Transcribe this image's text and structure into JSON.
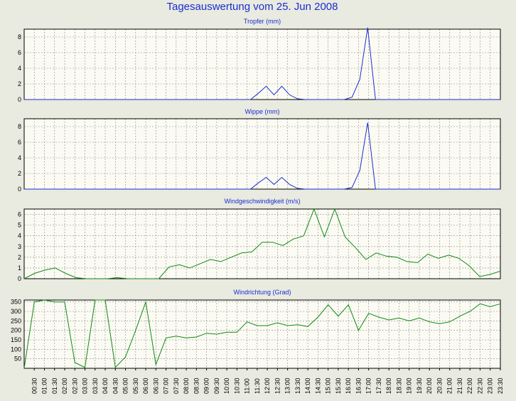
{
  "title": "Tagesauswertung vom 25. Jun 2008",
  "colors": {
    "background": "#e9eae0",
    "plot_background": "#fbfbf4",
    "title": "#1a2ed0",
    "rain_series": "#1a2ed0",
    "wind_series": "#0f8a0f",
    "grid": "#8a8a8a"
  },
  "chart_data": [
    {
      "type": "line",
      "title": "Tropfer (mm)",
      "ylim": [
        0,
        9
      ],
      "yticks": [
        0,
        2,
        4,
        6,
        8
      ],
      "grid": true,
      "series": [
        {
          "color": "#1a2ed0",
          "values": [
            0,
            0,
            0,
            0,
            0,
            0,
            0,
            0,
            0,
            0,
            0,
            0,
            0,
            0,
            0,
            0,
            0,
            0,
            0,
            0,
            0,
            0,
            0,
            0,
            0,
            0,
            0,
            0,
            0,
            0,
            0.8,
            1.7,
            0.6,
            1.7,
            0.6,
            0.1,
            0,
            0,
            0,
            0,
            0,
            0,
            0.3,
            2.6,
            9.2,
            0,
            0,
            0,
            0,
            0,
            0,
            0,
            0,
            0,
            0,
            0,
            0,
            0,
            0,
            0,
            0,
            0
          ]
        }
      ]
    },
    {
      "type": "line",
      "title": "Wippe (mm)",
      "ylim": [
        0,
        9
      ],
      "yticks": [
        0,
        2,
        4,
        6,
        8
      ],
      "grid": true,
      "series": [
        {
          "color": "#1a2ed0",
          "values": [
            0,
            0,
            0,
            0,
            0,
            0,
            0,
            0,
            0,
            0,
            0,
            0,
            0,
            0,
            0,
            0,
            0,
            0,
            0,
            0,
            0,
            0,
            0,
            0,
            0,
            0,
            0,
            0,
            0,
            0,
            0.8,
            1.5,
            0.6,
            1.5,
            0.6,
            0.1,
            0,
            0,
            0,
            0,
            0,
            0,
            0.2,
            2.4,
            8.5,
            0,
            0,
            0,
            0,
            0,
            0,
            0,
            0,
            0,
            0,
            0,
            0,
            0,
            0,
            0,
            0,
            0
          ]
        }
      ]
    },
    {
      "type": "line",
      "title": "Windgeschwindigkeit (m/s)",
      "ylim": [
        0,
        6.5
      ],
      "yticks": [
        0,
        1,
        2,
        3,
        4,
        5,
        6
      ],
      "grid": true,
      "series": [
        {
          "color": "#0f8a0f",
          "values": [
            0,
            0.5,
            0.8,
            1,
            0.5,
            0.1,
            0,
            0,
            0,
            0.1,
            0,
            0,
            0,
            0,
            1.1,
            1.3,
            1,
            1.4,
            1.8,
            1.6,
            2,
            2.4,
            2.5,
            3.4,
            3.4,
            3.1,
            3.7,
            4,
            6.5,
            3.9,
            6.5,
            3.9,
            2.9,
            1.8,
            2.4,
            2.1,
            2,
            1.6,
            1.5,
            2.3,
            1.9,
            2.2,
            1.9,
            1.2,
            0.2,
            0.4,
            0.7
          ]
        }
      ]
    },
    {
      "type": "line",
      "title": "Windrichtung (Grad)",
      "ylim": [
        0,
        360
      ],
      "yticks": [
        50,
        100,
        150,
        200,
        250,
        300,
        350
      ],
      "grid": true,
      "series": [
        {
          "color": "#0f8a0f",
          "values": [
            0,
            350,
            360,
            350,
            350,
            30,
            5,
            360,
            360,
            5,
            60,
            200,
            350,
            20,
            160,
            170,
            160,
            165,
            185,
            180,
            190,
            190,
            245,
            225,
            225,
            240,
            225,
            230,
            220,
            270,
            335,
            275,
            335,
            200,
            290,
            270,
            255,
            265,
            250,
            265,
            245,
            235,
            245,
            275,
            300,
            340,
            325,
            340
          ]
        }
      ]
    }
  ],
  "x_ticks": [
    "00:30",
    "01:00",
    "01:30",
    "02:00",
    "02:30",
    "03:00",
    "03:30",
    "04:00",
    "04:30",
    "05:00",
    "05:30",
    "06:00",
    "06:30",
    "07:00",
    "07:30",
    "08:00",
    "08:30",
    "09:00",
    "09:30",
    "10:00",
    "10:30",
    "11:00",
    "11:30",
    "12:00",
    "12:30",
    "13:00",
    "13:30",
    "14:00",
    "14:30",
    "15:00",
    "15:30",
    "16:00",
    "16:30",
    "17:00",
    "17:30",
    "18:00",
    "18:30",
    "19:00",
    "19:30",
    "20:00",
    "20:30",
    "21:00",
    "21:30",
    "22:00",
    "22:30",
    "23:00",
    "23:30"
  ]
}
